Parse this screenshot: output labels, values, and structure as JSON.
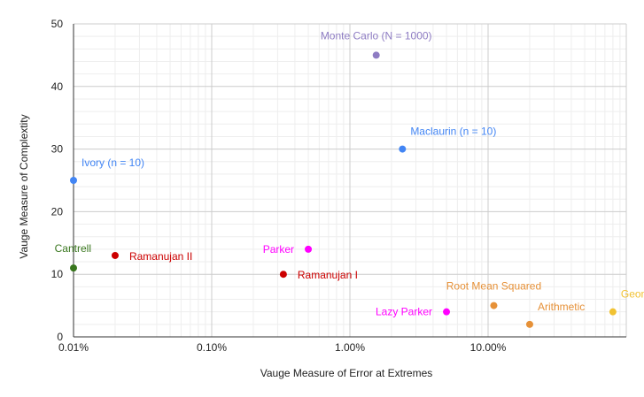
{
  "chart_data": {
    "type": "scatter",
    "title": "",
    "xlabel": "Vauge Measure of Error at Extremes",
    "ylabel": "Vauge Measure of Complextity",
    "x_scale": "log",
    "x_unit": "percent",
    "xlim": [
      0.01,
      100
    ],
    "ylim": [
      0,
      50
    ],
    "x_ticks": [
      "0.01%",
      "0.10%",
      "1.00%",
      "10.00%"
    ],
    "y_ticks": [
      "0",
      "10",
      "20",
      "30",
      "40",
      "50"
    ],
    "grid": true,
    "legend": "none",
    "points": [
      {
        "name": "Ivory (n = 10)",
        "x": 0.01,
        "y": 25,
        "color": "#4285f4",
        "label_pos": "above-right"
      },
      {
        "name": "Cantrell",
        "x": 0.01,
        "y": 11,
        "color": "#38761d",
        "label_pos": "above-left"
      },
      {
        "name": "Ramanujan II",
        "x": 0.02,
        "y": 13,
        "color": "#cc0000",
        "label_pos": "right"
      },
      {
        "name": "Parker",
        "x": 0.5,
        "y": 14,
        "color": "#ff00ff",
        "label_pos": "left"
      },
      {
        "name": "Ramanujan I",
        "x": 0.33,
        "y": 10,
        "color": "#cc0000",
        "label_pos": "right"
      },
      {
        "name": "Monte Carlo (N = 1000)",
        "x": 1.55,
        "y": 45,
        "color": "#8e7cc3",
        "label_pos": "above"
      },
      {
        "name": "Maclaurin (n = 10)",
        "x": 2.4,
        "y": 30,
        "color": "#4285f4",
        "label_pos": "above-right"
      },
      {
        "name": "Lazy Parker",
        "x": 5.0,
        "y": 4,
        "color": "#ff00ff",
        "label_pos": "left"
      },
      {
        "name": "Root Mean Squared",
        "x": 11.0,
        "y": 5,
        "color": "#e69138",
        "label_pos": "above"
      },
      {
        "name": "Arithmetic",
        "x": 20.0,
        "y": 2,
        "color": "#e69138",
        "label_pos": "above-right"
      },
      {
        "name": "Geometric",
        "x": 80.0,
        "y": 4,
        "color": "#f1c232",
        "label_pos": "above-right"
      }
    ]
  }
}
